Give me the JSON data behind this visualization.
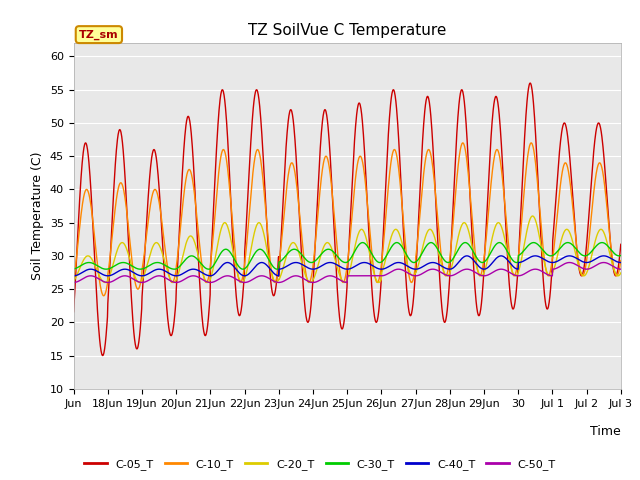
{
  "title": "TZ SoilVue C Temperature",
  "xlabel": "Time",
  "ylabel": "Soil Temperature (C)",
  "ylim": [
    10,
    62
  ],
  "yticks": [
    10,
    15,
    20,
    25,
    30,
    35,
    40,
    45,
    50,
    55,
    60
  ],
  "outer_bg": "#ffffff",
  "plot_bg_color": "#e8e8e8",
  "grid_color": "#ffffff",
  "series_colors": {
    "C-05_T": "#cc0000",
    "C-10_T": "#ff8800",
    "C-20_T": "#ddcc00",
    "C-30_T": "#00cc00",
    "C-40_T": "#0000cc",
    "C-50_T": "#aa00aa"
  },
  "legend_label": "TZ_sm",
  "legend_bbox_color": "#ffff99",
  "legend_border_color": "#cc8800",
  "title_fontsize": 11,
  "tick_fontsize": 8,
  "axis_label_fontsize": 9,
  "peaks_05": [
    47,
    49,
    46,
    51,
    55,
    55,
    52,
    52,
    53,
    55,
    54,
    55,
    54,
    56,
    50
  ],
  "mins_05": [
    15,
    16,
    18,
    18,
    21,
    24,
    20,
    19,
    20,
    21,
    20,
    21,
    22,
    22,
    27
  ],
  "peaks_10": [
    40,
    41,
    40,
    43,
    46,
    46,
    44,
    45,
    45,
    46,
    46,
    47,
    46,
    47,
    44
  ],
  "mins_10": [
    24,
    25,
    26,
    26,
    26,
    26,
    26,
    26,
    26,
    26,
    27,
    27,
    27,
    27,
    27
  ],
  "peaks_20": [
    30,
    32,
    32,
    33,
    35,
    35,
    32,
    32,
    34,
    34,
    34,
    35,
    35,
    36,
    34
  ],
  "mins_20": [
    26,
    26,
    26,
    26,
    26,
    26,
    26,
    26,
    26,
    27,
    27,
    27,
    27,
    27,
    27
  ],
  "peaks_30": [
    29,
    29,
    29,
    30,
    31,
    31,
    31,
    31,
    32,
    32,
    32,
    32,
    32,
    32,
    32
  ],
  "mins_30": [
    28,
    28,
    28,
    28,
    28,
    28,
    29,
    29,
    29,
    29,
    29,
    29,
    29,
    30,
    30
  ],
  "peaks_40": [
    28,
    28,
    28,
    28,
    29,
    29,
    29,
    29,
    29,
    29,
    29,
    30,
    30,
    30,
    30
  ],
  "mins_40": [
    27,
    27,
    27,
    27,
    27,
    27,
    28,
    28,
    28,
    28,
    28,
    28,
    28,
    29,
    29
  ],
  "peaks_50": [
    27,
    27,
    27,
    27,
    27,
    27,
    27,
    27,
    27,
    28,
    28,
    28,
    28,
    28,
    29
  ],
  "mins_50": [
    26,
    26,
    26,
    26,
    26,
    26,
    26,
    26,
    27,
    27,
    27,
    27,
    27,
    27,
    28
  ]
}
